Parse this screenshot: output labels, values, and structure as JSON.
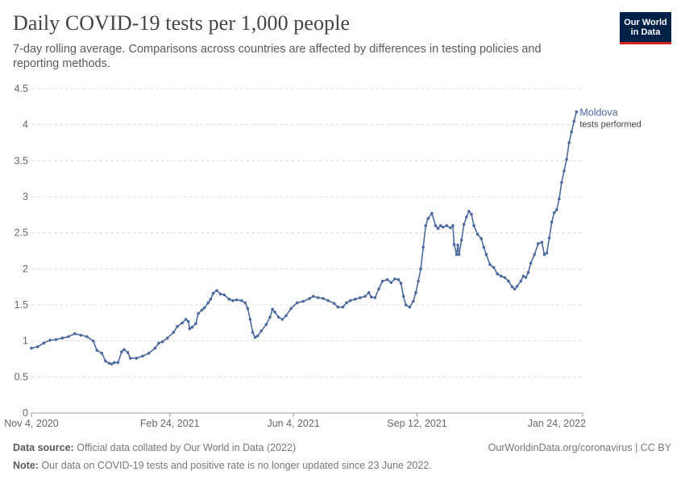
{
  "header": {
    "title": "Daily COVID-19 tests per 1,000 people",
    "subtitle": "7-day rolling average. Comparisons across countries are affected by differences in testing policies and reporting methods.",
    "logo_line1": "Our World",
    "logo_line2": "in Data"
  },
  "footer": {
    "source_label": "Data source:",
    "source_text": "Official data collated by Our World in Data (2022)",
    "note_label": "Note:",
    "note_text": "Our data on COVID-19 tests and positive rate is no longer updated since 23 June 2022.",
    "link": "OurWorldinData.org/coronavirus | CC BY"
  },
  "colors": {
    "series": "#4c6a9c",
    "grid": "#dddddd",
    "axis": "#999999",
    "text": "#666666"
  },
  "chart_data": {
    "type": "line",
    "title": "Daily COVID-19 tests per 1,000 people",
    "xlabel": "",
    "ylabel": "",
    "ylim": [
      0,
      4.5
    ],
    "yticks": [
      0,
      0.5,
      1,
      1.5,
      2,
      2.5,
      3,
      3.5,
      4,
      4.5
    ],
    "ytick_labels": [
      "0",
      "0.5",
      "1",
      "1.5",
      "2",
      "2.5",
      "3",
      "3.5",
      "4",
      "4.5"
    ],
    "x_range": [
      0,
      446
    ],
    "x_ticks": [
      {
        "day": 0,
        "label": "Nov 4, 2020"
      },
      {
        "day": 112,
        "label": "Feb 24, 2021"
      },
      {
        "day": 212,
        "label": "Jun 4, 2021"
      },
      {
        "day": 312,
        "label": "Sep 12, 2021"
      },
      {
        "day": 446,
        "label": "Jan 24, 2022"
      }
    ],
    "grid": true,
    "legend_position": "end-of-line",
    "series": [
      {
        "name": "Moldova",
        "sublabel": "tests performed",
        "points": [
          [
            0,
            0.9
          ],
          [
            5,
            0.92
          ],
          [
            10,
            0.97
          ],
          [
            15,
            1.01
          ],
          [
            20,
            1.02
          ],
          [
            25,
            1.04
          ],
          [
            30,
            1.06
          ],
          [
            35,
            1.1
          ],
          [
            40,
            1.08
          ],
          [
            45,
            1.06
          ],
          [
            50,
            1.0
          ],
          [
            53,
            0.87
          ],
          [
            57,
            0.83
          ],
          [
            60,
            0.72
          ],
          [
            63,
            0.69
          ],
          [
            65,
            0.68
          ],
          [
            67,
            0.7
          ],
          [
            70,
            0.7
          ],
          [
            73,
            0.85
          ],
          [
            75,
            0.88
          ],
          [
            78,
            0.84
          ],
          [
            80,
            0.76
          ],
          [
            85,
            0.76
          ],
          [
            90,
            0.79
          ],
          [
            95,
            0.83
          ],
          [
            100,
            0.9
          ],
          [
            103,
            0.97
          ],
          [
            106,
            0.99
          ],
          [
            110,
            1.04
          ],
          [
            115,
            1.12
          ],
          [
            118,
            1.2
          ],
          [
            122,
            1.25
          ],
          [
            125,
            1.3
          ],
          [
            127,
            1.27
          ],
          [
            128,
            1.17
          ],
          [
            130,
            1.19
          ],
          [
            133,
            1.24
          ],
          [
            135,
            1.38
          ],
          [
            138,
            1.43
          ],
          [
            140,
            1.46
          ],
          [
            143,
            1.53
          ],
          [
            145,
            1.58
          ],
          [
            147,
            1.66
          ],
          [
            150,
            1.7
          ],
          [
            153,
            1.65
          ],
          [
            156,
            1.64
          ],
          [
            160,
            1.58
          ],
          [
            163,
            1.56
          ],
          [
            166,
            1.57
          ],
          [
            170,
            1.56
          ],
          [
            173,
            1.53
          ],
          [
            175,
            1.45
          ],
          [
            177,
            1.3
          ],
          [
            179,
            1.12
          ],
          [
            181,
            1.05
          ],
          [
            183,
            1.07
          ],
          [
            186,
            1.14
          ],
          [
            190,
            1.23
          ],
          [
            193,
            1.33
          ],
          [
            195,
            1.44
          ],
          [
            197,
            1.4
          ],
          [
            200,
            1.33
          ],
          [
            203,
            1.3
          ],
          [
            206,
            1.35
          ],
          [
            210,
            1.45
          ],
          [
            215,
            1.53
          ],
          [
            220,
            1.55
          ],
          [
            225,
            1.59
          ],
          [
            228,
            1.62
          ],
          [
            232,
            1.6
          ],
          [
            236,
            1.59
          ],
          [
            240,
            1.56
          ],
          [
            245,
            1.52
          ],
          [
            248,
            1.47
          ],
          [
            252,
            1.47
          ],
          [
            255,
            1.53
          ],
          [
            258,
            1.56
          ],
          [
            262,
            1.58
          ],
          [
            266,
            1.6
          ],
          [
            270,
            1.62
          ],
          [
            273,
            1.67
          ],
          [
            275,
            1.61
          ],
          [
            278,
            1.6
          ],
          [
            281,
            1.72
          ],
          [
            284,
            1.83
          ],
          [
            288,
            1.85
          ],
          [
            291,
            1.81
          ],
          [
            294,
            1.86
          ],
          [
            297,
            1.85
          ],
          [
            299,
            1.8
          ],
          [
            301,
            1.62
          ],
          [
            303,
            1.5
          ],
          [
            306,
            1.47
          ],
          [
            309,
            1.55
          ],
          [
            311,
            1.67
          ],
          [
            313,
            1.83
          ],
          [
            315,
            2.0
          ],
          [
            317,
            2.3
          ],
          [
            319,
            2.6
          ],
          [
            321,
            2.7
          ],
          [
            324,
            2.77
          ],
          [
            327,
            2.6
          ],
          [
            329,
            2.56
          ],
          [
            331,
            2.6
          ],
          [
            333,
            2.58
          ],
          [
            336,
            2.6
          ],
          [
            339,
            2.57
          ],
          [
            341,
            2.6
          ],
          [
            342,
            2.34
          ],
          [
            344,
            2.2
          ],
          [
            345,
            2.33
          ],
          [
            346,
            2.2
          ],
          [
            348,
            2.4
          ],
          [
            350,
            2.62
          ],
          [
            352,
            2.72
          ],
          [
            354,
            2.8
          ],
          [
            356,
            2.76
          ],
          [
            358,
            2.6
          ],
          [
            361,
            2.48
          ],
          [
            364,
            2.42
          ],
          [
            366,
            2.3
          ],
          [
            368,
            2.2
          ],
          [
            371,
            2.06
          ],
          [
            374,
            2.02
          ],
          [
            377,
            1.93
          ],
          [
            380,
            1.9
          ],
          [
            383,
            1.88
          ],
          [
            386,
            1.83
          ],
          [
            389,
            1.75
          ],
          [
            391,
            1.72
          ],
          [
            393,
            1.76
          ],
          [
            396,
            1.83
          ],
          [
            398,
            1.9
          ],
          [
            400,
            1.88
          ],
          [
            402,
            1.95
          ],
          [
            404,
            2.08
          ],
          [
            407,
            2.2
          ],
          [
            410,
            2.35
          ],
          [
            413,
            2.37
          ],
          [
            415,
            2.2
          ],
          [
            417,
            2.22
          ],
          [
            419,
            2.43
          ],
          [
            421,
            2.65
          ],
          [
            423,
            2.78
          ],
          [
            425,
            2.82
          ],
          [
            427,
            2.97
          ],
          [
            429,
            3.2
          ],
          [
            431,
            3.36
          ],
          [
            433,
            3.52
          ],
          [
            435,
            3.75
          ],
          [
            437,
            3.9
          ],
          [
            439,
            4.05
          ],
          [
            441,
            4.18
          ]
        ]
      }
    ]
  }
}
